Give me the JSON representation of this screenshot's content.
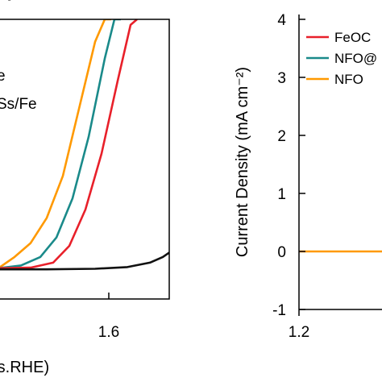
{
  "chart_data": [
    {
      "type": "line",
      "panel": "left (cropped)",
      "panel_label_fragment": "(",
      "x_tick_labels": [
        "1.6"
      ],
      "xlabel_fragment": "rs.RHE)",
      "legend_fragments": [
        "e",
        "Ss/Fe"
      ],
      "xlim": [
        1.15,
        1.68
      ],
      "ylim": [
        -1,
        4
      ],
      "series": [
        {
          "color": "#ff9900",
          "x": [
            1.15,
            1.2,
            1.25,
            1.3,
            1.35,
            1.4,
            1.45,
            1.48,
            1.5
          ],
          "y": [
            -0.45,
            -0.25,
            0.0,
            0.45,
            1.2,
            2.4,
            3.6,
            4.0,
            4.0
          ]
        },
        {
          "color": "#1a8a8a",
          "x": [
            1.15,
            1.22,
            1.28,
            1.33,
            1.38,
            1.43,
            1.48,
            1.51,
            1.53
          ],
          "y": [
            -0.45,
            -0.4,
            -0.25,
            0.1,
            0.8,
            1.9,
            3.3,
            4.0,
            4.0
          ]
        },
        {
          "color": "#e8202a",
          "x": [
            1.15,
            1.25,
            1.32,
            1.37,
            1.42,
            1.47,
            1.52,
            1.56,
            1.58
          ],
          "y": [
            -0.45,
            -0.44,
            -0.35,
            -0.05,
            0.6,
            1.6,
            2.9,
            3.9,
            4.0
          ]
        },
        {
          "color": "#111111",
          "x": [
            1.15,
            1.3,
            1.45,
            1.55,
            1.62,
            1.66,
            1.68
          ],
          "y": [
            -0.47,
            -0.47,
            -0.46,
            -0.43,
            -0.35,
            -0.25,
            -0.17
          ]
        }
      ]
    },
    {
      "type": "line",
      "panel": "right (cropped)",
      "y_ticks": [
        -1,
        0,
        1,
        2,
        3,
        4
      ],
      "y_tick_labels": [
        "-1",
        "0",
        "1",
        "2",
        "3",
        "4"
      ],
      "x_tick_labels": [
        "1.2"
      ],
      "ylabel": "Current Density (mA cm⁻²)",
      "ylim": [
        -1,
        4
      ],
      "xlim": [
        1.2,
        1.35
      ],
      "legend": [
        {
          "label": "FeOC",
          "color": "#e8202a"
        },
        {
          "label": "NFO@",
          "color": "#1a8a8a"
        },
        {
          "label": "NFO",
          "color": "#ff9900"
        }
      ],
      "series": [
        {
          "color": "#ff9900",
          "x": [
            1.2,
            1.35
          ],
          "y": [
            0,
            0
          ]
        }
      ]
    }
  ]
}
